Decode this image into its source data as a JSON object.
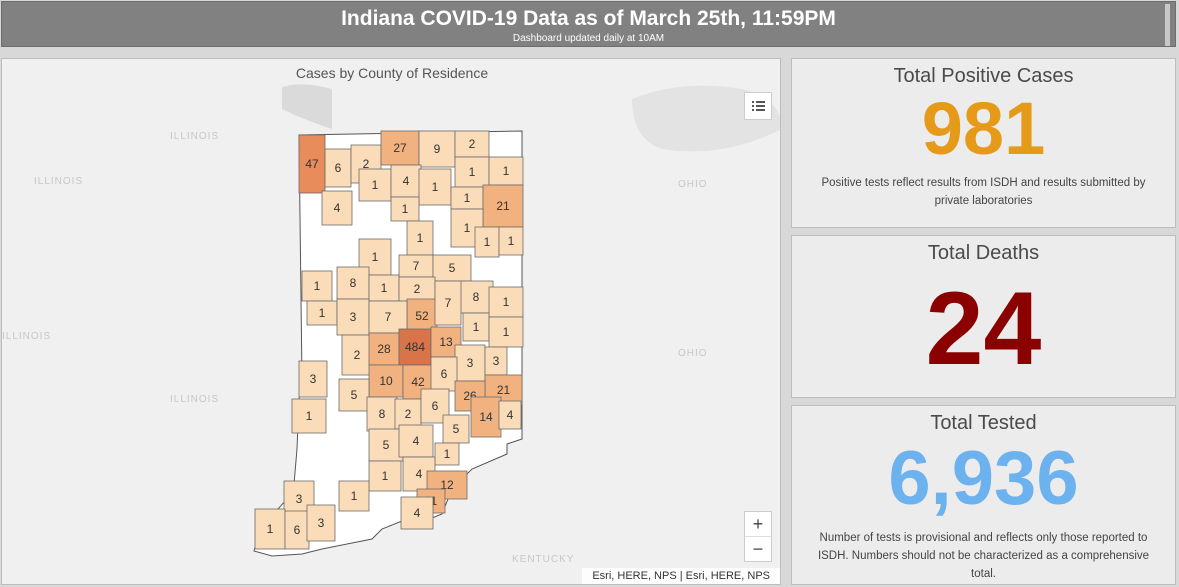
{
  "header": {
    "title": "Indiana COVID-19 Data as of March 25th, 11:59PM",
    "subtitle": "Dashboard updated daily at 10AM"
  },
  "map": {
    "title": "Cases by County of Residence",
    "attribution": "Esri, HERE, NPS | Esri, HERE, NPS",
    "zoom_in": "+",
    "zoom_out": "−",
    "state_labels": [
      "ILLINOIS",
      "ILLINOIS",
      "ILLINOIS",
      "ILLINOIS",
      "OHIO",
      "OHIO",
      "KENTUCKY"
    ],
    "county_counts": [
      "47",
      "6",
      "2",
      "27",
      "9",
      "2",
      "1",
      "4",
      "1",
      "1",
      "1",
      "4",
      "1",
      "1",
      "21",
      "1",
      "1",
      "1",
      "1",
      "1",
      "7",
      "5",
      "1",
      "8",
      "1",
      "2",
      "8",
      "1",
      "1",
      "52",
      "7",
      "1",
      "3",
      "7",
      "1",
      "2",
      "28",
      "484",
      "13",
      "3",
      "3",
      "10",
      "42",
      "6",
      "21",
      "3",
      "5",
      "26",
      "14",
      "4",
      "1",
      "8",
      "2",
      "6",
      "5",
      "5",
      "4",
      "1",
      "1",
      "4",
      "12",
      "3",
      "1",
      "11",
      "4",
      "1",
      "6",
      "3"
    ],
    "colors": {
      "none": "#ffffff",
      "low": "#fbdcb8",
      "mid": "#f2b27f",
      "high": "#e78c5a",
      "top": "#d8734a"
    }
  },
  "cards": {
    "positive": {
      "label": "Total Positive Cases",
      "value": "981",
      "note": "Positive tests reflect results from ISDH and results submitted by private laboratories",
      "color": "#e69a1a"
    },
    "deaths": {
      "label": "Total Deaths",
      "value": "24",
      "color": "#8b0000"
    },
    "tested": {
      "label": "Total Tested",
      "value": "6,936",
      "note": "Number of tests is provisional and reflects only those reported to ISDH. Numbers should not be characterized as a comprehensive total.",
      "color": "#6cb2ef"
    }
  }
}
